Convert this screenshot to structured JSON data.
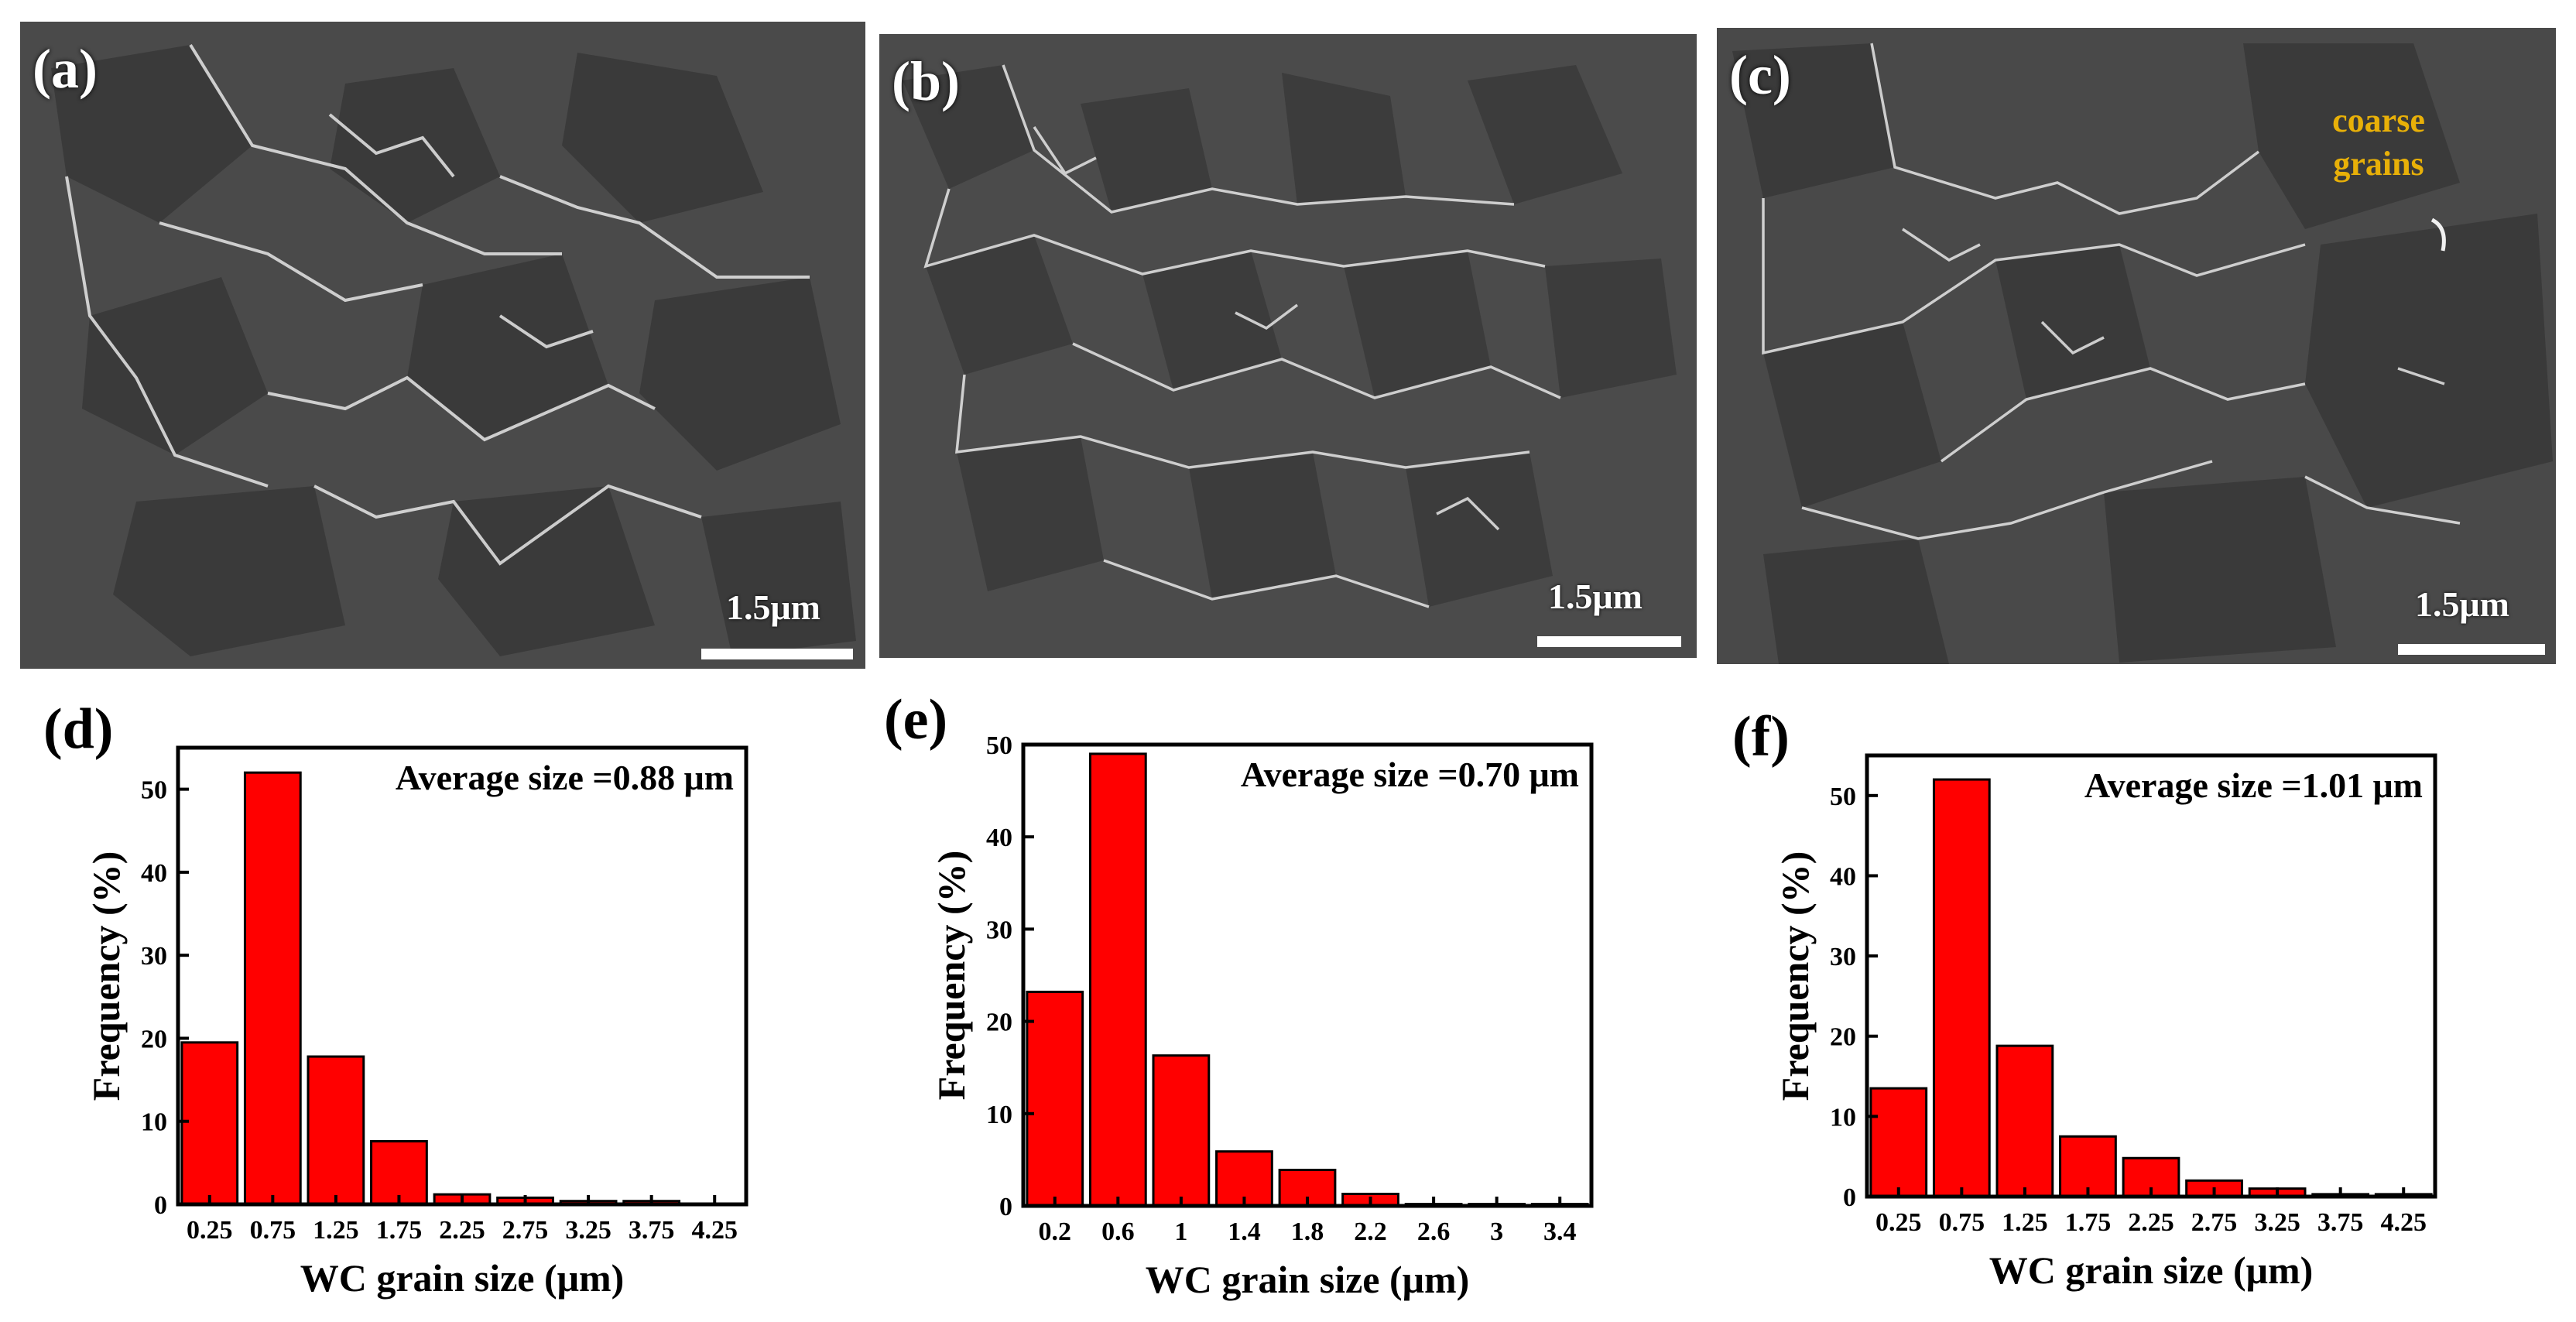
{
  "micrographs": [
    {
      "label": "(a)",
      "scale": "1.5μm",
      "annotation": null
    },
    {
      "label": "(b)",
      "scale": "1.5μm",
      "annotation": null
    },
    {
      "label": "(c)",
      "scale": "1.5μm",
      "annotation": "coarse grains"
    }
  ],
  "chart_data": [
    {
      "type": "bar",
      "panel": "(d)",
      "categories": [
        "0.25",
        "0.75",
        "1.25",
        "1.75",
        "2.25",
        "2.75",
        "3.25",
        "3.75",
        "4.25"
      ],
      "values": [
        19.5,
        52,
        17.8,
        7.6,
        1.2,
        0.8,
        0.4,
        0.4,
        0
      ],
      "annotation": "Average size =0.88 μm",
      "xlabel": "WC grain size (μm)",
      "ylabel": "Frequency (%)",
      "ylim": [
        0,
        55
      ],
      "yticks": [
        0,
        10,
        20,
        30,
        40,
        50
      ],
      "bar_color": "#ff0000"
    },
    {
      "type": "bar",
      "panel": "(e)",
      "categories": [
        "0.2",
        "0.6",
        "1",
        "1.4",
        "1.8",
        "2.2",
        "2.6",
        "3",
        "3.4"
      ],
      "values": [
        23.2,
        49,
        16.3,
        5.9,
        3.9,
        1.3,
        0.2,
        0.2,
        0.2
      ],
      "annotation": "Average size =0.70 μm",
      "xlabel": "WC grain size (μm)",
      "ylabel": "Frequency (%)",
      "ylim": [
        0,
        50
      ],
      "yticks": [
        0,
        10,
        20,
        30,
        40,
        50
      ],
      "bar_color": "#ff0000"
    },
    {
      "type": "bar",
      "panel": "(f)",
      "categories": [
        "0.25",
        "0.75",
        "1.25",
        "1.75",
        "2.25",
        "2.75",
        "3.25",
        "3.75",
        "4.25"
      ],
      "values": [
        13.5,
        52,
        18.8,
        7.5,
        4.8,
        2.0,
        1.0,
        0.3,
        0.3
      ],
      "annotation": "Average size =1.01 μm",
      "xlabel": "WC grain size (μm)",
      "ylabel": "Frequency (%)",
      "ylim": [
        0,
        55
      ],
      "yticks": [
        0,
        10,
        20,
        30,
        40,
        50
      ],
      "bar_color": "#ff0000"
    }
  ]
}
